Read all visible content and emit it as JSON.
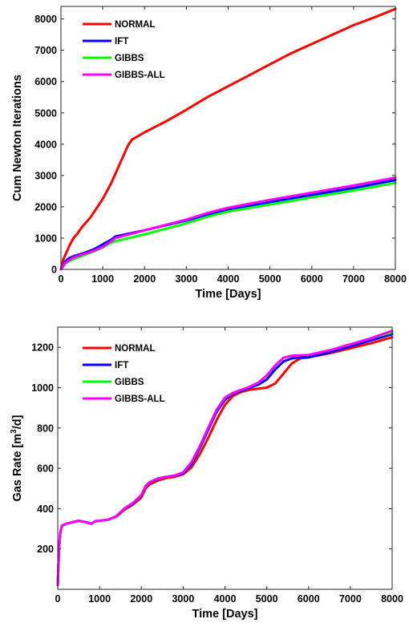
{
  "chart_data": [
    {
      "type": "line",
      "xlabel": "Time [Days]",
      "ylabel": "Cum Newton Iterations",
      "xlim": [
        0,
        8000
      ],
      "ylim": [
        0,
        8400
      ],
      "xticks": [
        0,
        1000,
        2000,
        3000,
        4000,
        5000,
        6000,
        7000,
        8000
      ],
      "yticks": [
        0,
        1000,
        2000,
        3000,
        4000,
        5000,
        6000,
        7000,
        8000
      ],
      "grid": false,
      "legend_position": "top-left",
      "series": [
        {
          "name": "NORMAL",
          "color": "#ff0000",
          "x": [
            0,
            50,
            100,
            200,
            300,
            400,
            500,
            600,
            700,
            800,
            900,
            1000,
            1100,
            1200,
            1300,
            1400,
            1500,
            1600,
            1700,
            1800,
            2000,
            2500,
            3000,
            3500,
            4000,
            4500,
            5000,
            5500,
            6000,
            6500,
            7000,
            7500,
            8000
          ],
          "y": [
            0,
            300,
            450,
            750,
            1000,
            1150,
            1350,
            1500,
            1650,
            1850,
            2050,
            2250,
            2500,
            2750,
            3050,
            3350,
            3650,
            3950,
            4150,
            4220,
            4380,
            4720,
            5100,
            5500,
            5850,
            6200,
            6550,
            6900,
            7200,
            7500,
            7800,
            8050,
            8320
          ]
        },
        {
          "name": "IFT",
          "color": "#0000ff",
          "x": [
            0,
            100,
            200,
            300,
            500,
            800,
            1000,
            1200,
            1300,
            2000,
            3000,
            3500,
            4000,
            5000,
            6000,
            7000,
            8000
          ],
          "y": [
            0,
            250,
            360,
            420,
            500,
            650,
            800,
            950,
            1050,
            1250,
            1560,
            1750,
            1920,
            2150,
            2380,
            2600,
            2850
          ]
        },
        {
          "name": "GIBBS",
          "color": "#00ff00",
          "x": [
            0,
            100,
            200,
            300,
            500,
            800,
            1000,
            1200,
            1300,
            2000,
            3000,
            3500,
            4000,
            5000,
            6000,
            7000,
            8000
          ],
          "y": [
            0,
            180,
            260,
            330,
            430,
            580,
            700,
            850,
            900,
            1120,
            1470,
            1680,
            1850,
            2070,
            2300,
            2520,
            2760
          ]
        },
        {
          "name": "GIBBS-ALL",
          "color": "#ff00ff",
          "x": [
            0,
            100,
            200,
            300,
            500,
            800,
            1000,
            1200,
            1300,
            2000,
            3000,
            3500,
            4000,
            5000,
            6000,
            7000,
            8000
          ],
          "y": [
            0,
            200,
            300,
            380,
            470,
            600,
            720,
            900,
            1000,
            1250,
            1590,
            1800,
            1970,
            2220,
            2450,
            2680,
            2930
          ]
        }
      ]
    },
    {
      "type": "line",
      "xlabel": "Time [Days]",
      "ylabel_parts": [
        "Gas Rate [m",
        "3",
        "/d]"
      ],
      "xlim": [
        0,
        8000
      ],
      "ylim": [
        0,
        1300
      ],
      "xticks": [
        0,
        1000,
        2000,
        3000,
        4000,
        5000,
        6000,
        7000,
        8000
      ],
      "yticks": [
        200,
        400,
        600,
        800,
        1000,
        1200
      ],
      "grid": false,
      "legend_position": "top-left",
      "series": [
        {
          "name": "NORMAL",
          "color": "#ff0000",
          "x": [
            0,
            30,
            60,
            100,
            150,
            200,
            300,
            500,
            700,
            800,
            900,
            1000,
            1200,
            1400,
            1600,
            1800,
            2000,
            2100,
            2200,
            2400,
            2600,
            2800,
            3000,
            3200,
            3400,
            3600,
            3800,
            4000,
            4200,
            4400,
            4600,
            4800,
            5000,
            5200,
            5400,
            5600,
            5800,
            6000,
            6500,
            7000,
            7500,
            8000
          ],
          "y": [
            20,
            200,
            280,
            315,
            320,
            325,
            330,
            340,
            332,
            325,
            338,
            340,
            345,
            360,
            395,
            420,
            455,
            500,
            520,
            540,
            552,
            558,
            570,
            605,
            670,
            750,
            840,
            915,
            960,
            980,
            990,
            995,
            1000,
            1020,
            1070,
            1120,
            1145,
            1150,
            1170,
            1195,
            1220,
            1250
          ]
        },
        {
          "name": "IFT",
          "color": "#0000ff",
          "x": [
            0,
            30,
            60,
            100,
            150,
            200,
            300,
            500,
            700,
            800,
            900,
            1000,
            1200,
            1400,
            1600,
            1800,
            2000,
            2100,
            2200,
            2400,
            2600,
            2800,
            3000,
            3200,
            3400,
            3600,
            3800,
            4000,
            4200,
            4400,
            4600,
            4800,
            5000,
            5200,
            5400,
            5600,
            5800,
            6000,
            6500,
            7000,
            7500,
            8000
          ],
          "y": [
            20,
            200,
            280,
            315,
            320,
            325,
            330,
            340,
            332,
            325,
            338,
            340,
            345,
            362,
            400,
            425,
            465,
            510,
            530,
            548,
            557,
            562,
            575,
            620,
            700,
            790,
            880,
            940,
            970,
            985,
            1000,
            1015,
            1040,
            1090,
            1130,
            1145,
            1150,
            1150,
            1175,
            1205,
            1235,
            1265
          ]
        },
        {
          "name": "GIBBS",
          "color": "#00ff00",
          "x": [
            0,
            30,
            60,
            100,
            150,
            200,
            300,
            500,
            700,
            800,
            900,
            1000,
            1200,
            1400,
            1600,
            1800,
            2000,
            2100,
            2200,
            2400,
            2600,
            2800,
            3000,
            3200,
            3400,
            3600,
            3800,
            4000,
            4200,
            4400,
            4600,
            4800,
            5000,
            5200,
            5400,
            5600,
            5800,
            6000,
            6500,
            7000,
            7500,
            8000
          ],
          "y": [
            20,
            200,
            280,
            315,
            320,
            325,
            330,
            340,
            332,
            325,
            338,
            340,
            345,
            362,
            402,
            428,
            468,
            512,
            532,
            550,
            558,
            564,
            580,
            630,
            710,
            800,
            890,
            950,
            975,
            990,
            1005,
            1025,
            1060,
            1110,
            1148,
            1158,
            1160,
            1162,
            1185,
            1215,
            1245,
            1275
          ]
        },
        {
          "name": "GIBBS-ALL",
          "color": "#ff00ff",
          "x": [
            0,
            30,
            60,
            100,
            150,
            200,
            300,
            500,
            700,
            800,
            900,
            1000,
            1200,
            1400,
            1600,
            1800,
            2000,
            2100,
            2200,
            2400,
            2600,
            2800,
            3000,
            3200,
            3400,
            3600,
            3800,
            4000,
            4200,
            4400,
            4600,
            4800,
            5000,
            5200,
            5400,
            5600,
            5800,
            6000,
            6500,
            7000,
            7500,
            8000
          ],
          "y": [
            20,
            200,
            280,
            315,
            320,
            325,
            330,
            340,
            332,
            325,
            338,
            340,
            345,
            362,
            402,
            428,
            468,
            512,
            532,
            550,
            558,
            564,
            580,
            630,
            710,
            800,
            890,
            950,
            975,
            990,
            1005,
            1025,
            1060,
            1110,
            1148,
            1158,
            1160,
            1162,
            1185,
            1215,
            1245,
            1282
          ]
        }
      ]
    }
  ]
}
